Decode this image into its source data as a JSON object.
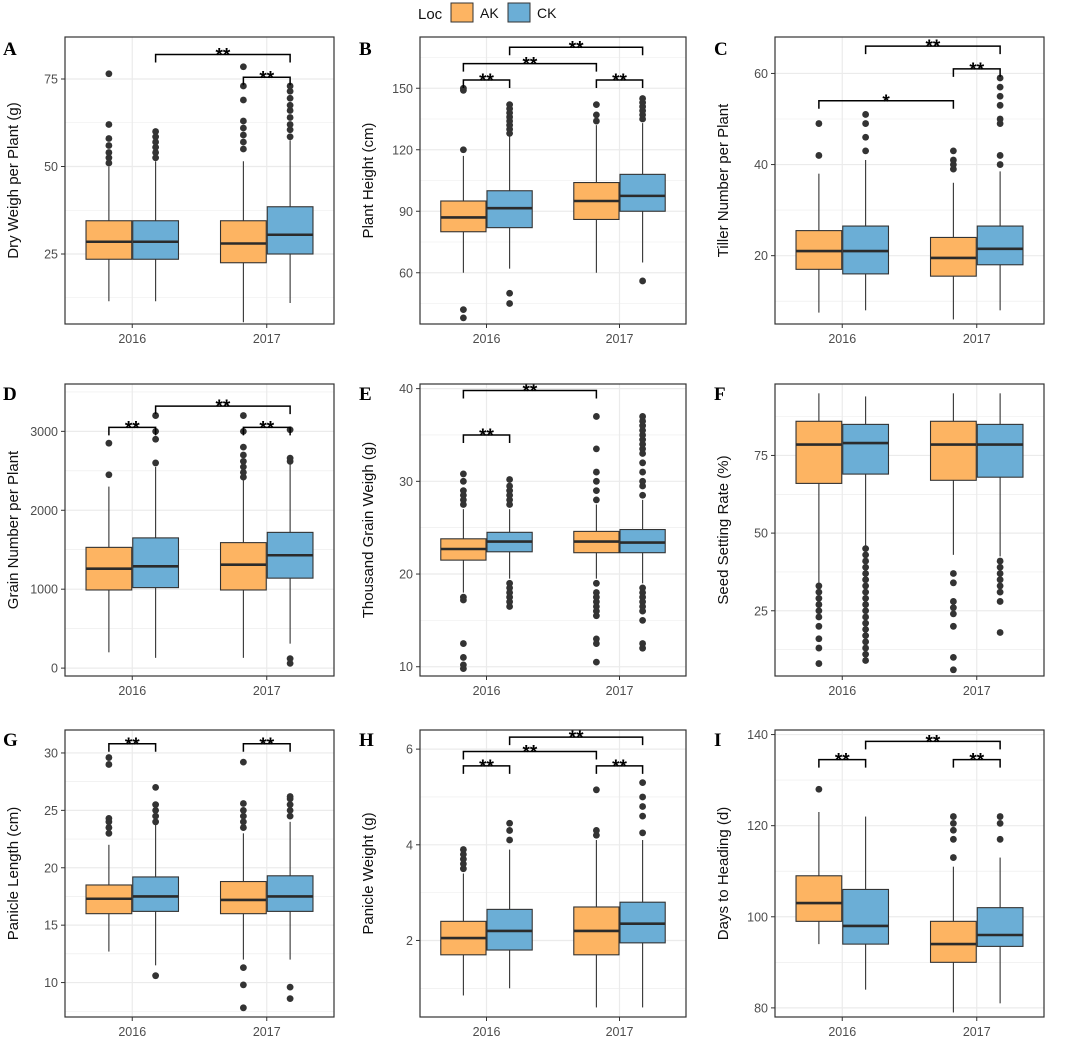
{
  "legend": {
    "title": "Loc",
    "groups": [
      {
        "name": "AK",
        "color": "#FDB462"
      },
      {
        "name": "CK",
        "color": "#6BAED6"
      }
    ]
  },
  "colors": {
    "AK": "#FDB462",
    "CK": "#6BAED6",
    "grid": "#ebebeb",
    "box_line": "#333333",
    "outlier": "#333333"
  },
  "chart_data": [
    {
      "panel": "A",
      "type": "boxplot",
      "ylabel": "Dry Weigh per Plant (g)",
      "categories": [
        "2016",
        "2017"
      ],
      "ylim": [
        5,
        87
      ],
      "yticks": [
        25,
        50,
        75
      ],
      "boxes": [
        {
          "year": "2016",
          "group": "AK",
          "min": 11.5,
          "q1": 23.5,
          "median": 28.5,
          "q3": 34.5,
          "max": 50,
          "outliers": [
            51,
            52.5,
            54,
            56,
            58,
            62,
            76.5
          ]
        },
        {
          "year": "2016",
          "group": "CK",
          "min": 11.5,
          "q1": 23.5,
          "median": 28.5,
          "q3": 34.5,
          "max": 51.5,
          "outliers": [
            52.5,
            54,
            55.5,
            57,
            58.5,
            60
          ]
        },
        {
          "year": "2017",
          "group": "AK",
          "min": 5.5,
          "q1": 22.5,
          "median": 28,
          "q3": 34.5,
          "max": 51.5,
          "outliers": [
            55,
            57,
            59,
            61,
            63,
            69,
            73,
            78.5
          ]
        },
        {
          "year": "2017",
          "group": "CK",
          "min": 11,
          "q1": 25,
          "median": 30.5,
          "q3": 38.5,
          "max": 57.5,
          "outliers": [
            58.5,
            60.5,
            62,
            64,
            66,
            67.5,
            69.5,
            71.5,
            73
          ]
        }
      ],
      "significance": [
        {
          "from": [
            0,
            "CK"
          ],
          "to": [
            1,
            "CK"
          ],
          "label": "**",
          "y": 82
        },
        {
          "from": [
            1,
            "AK"
          ],
          "to": [
            1,
            "CK"
          ],
          "label": "**",
          "y": 75.5
        }
      ]
    },
    {
      "panel": "B",
      "type": "boxplot",
      "ylabel": "Plant Height (cm)",
      "categories": [
        "2016",
        "2017"
      ],
      "ylim": [
        35,
        175
      ],
      "yticks": [
        60,
        90,
        120,
        150
      ],
      "boxes": [
        {
          "year": "2016",
          "group": "AK",
          "min": 60,
          "q1": 80,
          "median": 87,
          "q3": 95,
          "max": 117,
          "outliers": [
            120,
            149,
            150,
            42,
            38
          ]
        },
        {
          "year": "2016",
          "group": "CK",
          "min": 62,
          "q1": 82,
          "median": 91.5,
          "q3": 100,
          "max": 127,
          "outliers": [
            50,
            45,
            128,
            130,
            132,
            134,
            136,
            138,
            140,
            142
          ]
        },
        {
          "year": "2017",
          "group": "AK",
          "min": 60,
          "q1": 86,
          "median": 95,
          "q3": 104,
          "max": 132,
          "outliers": [
            134,
            137,
            142
          ]
        },
        {
          "year": "2017",
          "group": "CK",
          "min": 65,
          "q1": 90,
          "median": 97.5,
          "q3": 108,
          "max": 133,
          "outliers": [
            56,
            135,
            137,
            139,
            141,
            143,
            145
          ]
        }
      ],
      "significance": [
        {
          "from": [
            0,
            "AK"
          ],
          "to": [
            0,
            "CK"
          ],
          "label": "**",
          "y": 154
        },
        {
          "from": [
            0,
            "AK"
          ],
          "to": [
            1,
            "AK"
          ],
          "label": "**",
          "y": 162
        },
        {
          "from": [
            0,
            "CK"
          ],
          "to": [
            1,
            "CK"
          ],
          "label": "**",
          "y": 170
        },
        {
          "from": [
            1,
            "AK"
          ],
          "to": [
            1,
            "CK"
          ],
          "label": "**",
          "y": 154
        }
      ]
    },
    {
      "panel": "C",
      "type": "boxplot",
      "ylabel": "Tiller Number per Plant",
      "categories": [
        "2016",
        "2017"
      ],
      "ylim": [
        5,
        68
      ],
      "yticks": [
        20,
        40,
        60
      ],
      "boxes": [
        {
          "year": "2016",
          "group": "AK",
          "min": 7.5,
          "q1": 17,
          "median": 21,
          "q3": 25.5,
          "max": 38,
          "outliers": [
            42,
            49
          ]
        },
        {
          "year": "2016",
          "group": "CK",
          "min": 8,
          "q1": 16,
          "median": 21,
          "q3": 26.5,
          "max": 41,
          "outliers": [
            43,
            46,
            49,
            51
          ]
        },
        {
          "year": "2017",
          "group": "AK",
          "min": 6,
          "q1": 15.5,
          "median": 19.5,
          "q3": 24,
          "max": 36,
          "outliers": [
            39,
            40,
            41,
            43
          ]
        },
        {
          "year": "2017",
          "group": "CK",
          "min": 8,
          "q1": 18,
          "median": 21.5,
          "q3": 26.5,
          "max": 38.5,
          "outliers": [
            40,
            42,
            49,
            50,
            53,
            55,
            57,
            59
          ]
        }
      ],
      "significance": [
        {
          "from": [
            0,
            "AK"
          ],
          "to": [
            1,
            "AK"
          ],
          "label": "*",
          "y": 54
        },
        {
          "from": [
            1,
            "AK"
          ],
          "to": [
            1,
            "CK"
          ],
          "label": "**",
          "y": 61
        },
        {
          "from": [
            0,
            "CK"
          ],
          "to": [
            1,
            "CK"
          ],
          "label": "**",
          "y": 66
        }
      ]
    },
    {
      "panel": "D",
      "type": "boxplot",
      "ylabel": "Grain Number per Plant",
      "categories": [
        "2016",
        "2017"
      ],
      "ylim": [
        -100,
        3600
      ],
      "yticks": [
        0,
        1000,
        2000,
        3000
      ],
      "boxes": [
        {
          "year": "2016",
          "group": "AK",
          "min": 200,
          "q1": 990,
          "median": 1260,
          "q3": 1530,
          "max": 2300,
          "outliers": [
            2450,
            2850
          ]
        },
        {
          "year": "2016",
          "group": "CK",
          "min": 130,
          "q1": 1020,
          "median": 1290,
          "q3": 1650,
          "max": 2550,
          "outliers": [
            2600,
            2900,
            3000,
            3200
          ]
        },
        {
          "year": "2017",
          "group": "AK",
          "min": 130,
          "q1": 990,
          "median": 1310,
          "q3": 1590,
          "max": 2380,
          "outliers": [
            2420,
            2480,
            2550,
            2620,
            2700,
            2800,
            3000,
            3200
          ]
        },
        {
          "year": "2017",
          "group": "CK",
          "min": 310,
          "q1": 1140,
          "median": 1430,
          "q3": 1720,
          "max": 2600,
          "outliers": [
            60,
            120,
            2620,
            2660,
            3020
          ]
        }
      ],
      "significance": [
        {
          "from": [
            0,
            "AK"
          ],
          "to": [
            0,
            "CK"
          ],
          "label": "**",
          "y": 3050
        },
        {
          "from": [
            0,
            "CK"
          ],
          "to": [
            1,
            "CK"
          ],
          "label": "**",
          "y": 3320
        },
        {
          "from": [
            1,
            "AK"
          ],
          "to": [
            1,
            "CK"
          ],
          "label": "**",
          "y": 3050
        }
      ]
    },
    {
      "panel": "E",
      "type": "boxplot",
      "ylabel": "Thousand Grain Weigh (g)",
      "categories": [
        "2016",
        "2017"
      ],
      "ylim": [
        9,
        40.5
      ],
      "yticks": [
        10,
        20,
        30,
        40
      ],
      "boxes": [
        {
          "year": "2016",
          "group": "AK",
          "min": 18,
          "q1": 21.5,
          "median": 22.7,
          "q3": 23.8,
          "max": 27,
          "outliers": [
            17.5,
            17.2,
            12.5,
            11,
            10.2,
            9.8,
            27.5,
            28,
            28.5,
            29,
            30,
            30.8
          ]
        },
        {
          "year": "2016",
          "group": "CK",
          "min": 19.5,
          "q1": 22.4,
          "median": 23.5,
          "q3": 24.5,
          "max": 27,
          "outliers": [
            19,
            18.5,
            18,
            17.5,
            17,
            16.5,
            27.5,
            28,
            28.5,
            29,
            29.5,
            30.2
          ]
        },
        {
          "year": "2017",
          "group": "AK",
          "min": 19.5,
          "q1": 22.3,
          "median": 23.5,
          "q3": 24.6,
          "max": 27.5,
          "outliers": [
            19,
            18,
            17.5,
            17,
            16.5,
            16,
            15.5,
            13,
            12.5,
            10.5,
            28,
            29,
            30,
            31,
            33.5,
            37
          ]
        },
        {
          "year": "2017",
          "group": "CK",
          "min": 19,
          "q1": 22.3,
          "median": 23.4,
          "q3": 24.8,
          "max": 28,
          "outliers": [
            18.5,
            18,
            17.5,
            17,
            16.5,
            16,
            15,
            12.5,
            12,
            28.5,
            29.5,
            30,
            31,
            32,
            33,
            33.5,
            34,
            34.5,
            35,
            35.5,
            36,
            36.5,
            37
          ]
        }
      ],
      "significance": [
        {
          "from": [
            0,
            "AK"
          ],
          "to": [
            0,
            "CK"
          ],
          "label": "**",
          "y": 35
        },
        {
          "from": [
            0,
            "AK"
          ],
          "to": [
            1,
            "AK"
          ],
          "label": "**",
          "y": 39.8
        }
      ]
    },
    {
      "panel": "F",
      "type": "boxplot",
      "ylabel": "Seed Setting Rate (%)",
      "categories": [
        "2016",
        "2017"
      ],
      "ylim": [
        4,
        98
      ],
      "yticks": [
        25,
        50,
        75
      ],
      "boxes": [
        {
          "year": "2016",
          "group": "AK",
          "min": 34,
          "q1": 66,
          "median": 78.5,
          "q3": 86,
          "max": 95,
          "outliers": [
            33,
            31,
            29,
            27,
            25,
            23,
            20,
            16,
            13,
            8
          ]
        },
        {
          "year": "2016",
          "group": "CK",
          "min": 46,
          "q1": 69,
          "median": 79,
          "q3": 85,
          "max": 94,
          "outliers": [
            45,
            43,
            41,
            39,
            37,
            35,
            33,
            31,
            29,
            27,
            25,
            23,
            21,
            19,
            17,
            15,
            13,
            11,
            9
          ]
        },
        {
          "year": "2017",
          "group": "AK",
          "min": 43,
          "q1": 67,
          "median": 78.5,
          "q3": 86,
          "max": 95,
          "outliers": [
            37,
            34,
            28,
            26,
            24,
            20,
            10,
            6
          ]
        },
        {
          "year": "2017",
          "group": "CK",
          "min": 42.5,
          "q1": 68,
          "median": 78.5,
          "q3": 85,
          "max": 95,
          "outliers": [
            41,
            39,
            37,
            35,
            33,
            31,
            28,
            18
          ]
        }
      ],
      "significance": []
    },
    {
      "panel": "G",
      "type": "boxplot",
      "ylabel": "Panicle Length (cm)",
      "categories": [
        "2016",
        "2017"
      ],
      "ylim": [
        7,
        32
      ],
      "yticks": [
        10,
        15,
        20,
        25,
        30
      ],
      "boxes": [
        {
          "year": "2016",
          "group": "AK",
          "min": 12.7,
          "q1": 16,
          "median": 17.3,
          "q3": 18.5,
          "max": 22,
          "outliers": [
            23,
            23.5,
            24,
            24.3,
            29,
            29.6
          ]
        },
        {
          "year": "2016",
          "group": "CK",
          "min": 11.5,
          "q1": 16.2,
          "median": 17.5,
          "q3": 19.2,
          "max": 23.8,
          "outliers": [
            10.6,
            24,
            24.5,
            25,
            25.5,
            27
          ]
        },
        {
          "year": "2017",
          "group": "AK",
          "min": 12,
          "q1": 16,
          "median": 17.2,
          "q3": 18.8,
          "max": 23,
          "outliers": [
            11.3,
            9.8,
            7.8,
            23.5,
            24,
            24.5,
            25,
            25.6,
            29.2
          ]
        },
        {
          "year": "2017",
          "group": "CK",
          "min": 12,
          "q1": 16.2,
          "median": 17.5,
          "q3": 19.3,
          "max": 24,
          "outliers": [
            9.6,
            8.6,
            24.5,
            25,
            25.5,
            26,
            26.2
          ]
        }
      ],
      "significance": [
        {
          "from": [
            0,
            "AK"
          ],
          "to": [
            0,
            "CK"
          ],
          "label": "**",
          "y": 30.8
        },
        {
          "from": [
            1,
            "AK"
          ],
          "to": [
            1,
            "CK"
          ],
          "label": "**",
          "y": 30.8
        }
      ]
    },
    {
      "panel": "H",
      "type": "boxplot",
      "ylabel": "Panicle Weight (g)",
      "categories": [
        "2016",
        "2017"
      ],
      "ylim": [
        0.4,
        6.4
      ],
      "yticks": [
        2,
        4,
        6
      ],
      "boxes": [
        {
          "year": "2016",
          "group": "AK",
          "min": 0.85,
          "q1": 1.7,
          "median": 2.05,
          "q3": 2.4,
          "max": 3.4,
          "outliers": [
            3.5,
            3.6,
            3.7,
            3.8,
            3.9
          ]
        },
        {
          "year": "2016",
          "group": "CK",
          "min": 1,
          "q1": 1.8,
          "median": 2.2,
          "q3": 2.65,
          "max": 3.9,
          "outliers": [
            4.1,
            4.3,
            4.45
          ]
        },
        {
          "year": "2017",
          "group": "AK",
          "min": 0.6,
          "q1": 1.7,
          "median": 2.2,
          "q3": 2.7,
          "max": 4.1,
          "outliers": [
            4.2,
            4.3,
            5.15
          ]
        },
        {
          "year": "2017",
          "group": "CK",
          "min": 0.6,
          "q1": 1.95,
          "median": 2.35,
          "q3": 2.8,
          "max": 4.1,
          "outliers": [
            4.25,
            4.6,
            4.8,
            5.0,
            5.3
          ]
        }
      ],
      "significance": [
        {
          "from": [
            0,
            "AK"
          ],
          "to": [
            0,
            "CK"
          ],
          "label": "**",
          "y": 5.65
        },
        {
          "from": [
            0,
            "AK"
          ],
          "to": [
            1,
            "AK"
          ],
          "label": "**",
          "y": 5.95
        },
        {
          "from": [
            0,
            "CK"
          ],
          "to": [
            1,
            "CK"
          ],
          "label": "**",
          "y": 6.25
        },
        {
          "from": [
            1,
            "AK"
          ],
          "to": [
            1,
            "CK"
          ],
          "label": "**",
          "y": 5.65
        }
      ]
    },
    {
      "panel": "I",
      "type": "boxplot",
      "ylabel": "Days to Heading (d)",
      "categories": [
        "2016",
        "2017"
      ],
      "ylim": [
        78,
        141
      ],
      "yticks": [
        80,
        100,
        120,
        140
      ],
      "boxes": [
        {
          "year": "2016",
          "group": "AK",
          "min": 94,
          "q1": 99,
          "median": 103,
          "q3": 109,
          "max": 123,
          "outliers": [
            128
          ]
        },
        {
          "year": "2016",
          "group": "CK",
          "min": 84,
          "q1": 94,
          "median": 98,
          "q3": 106,
          "max": 122,
          "outliers": []
        },
        {
          "year": "2017",
          "group": "AK",
          "min": 79,
          "q1": 90,
          "median": 94,
          "q3": 99,
          "max": 111,
          "outliers": [
            113,
            117,
            119,
            120.5,
            122
          ]
        },
        {
          "year": "2017",
          "group": "CK",
          "min": 81,
          "q1": 93.5,
          "median": 96,
          "q3": 102,
          "max": 113,
          "outliers": [
            117,
            120.5,
            122
          ]
        }
      ],
      "significance": [
        {
          "from": [
            0,
            "AK"
          ],
          "to": [
            0,
            "CK"
          ],
          "label": "**",
          "y": 134.5
        },
        {
          "from": [
            0,
            "CK"
          ],
          "to": [
            1,
            "CK"
          ],
          "label": "**",
          "y": 138.5
        },
        {
          "from": [
            1,
            "AK"
          ],
          "to": [
            1,
            "CK"
          ],
          "label": "**",
          "y": 134.5
        }
      ]
    }
  ]
}
